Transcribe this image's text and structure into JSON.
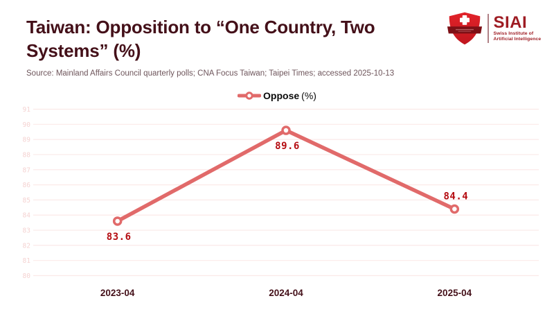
{
  "header": {
    "title": "Taiwan: Opposition to “One Country, Two Systems” (%)",
    "source": "Source: Mainland Affairs Council quarterly polls; CNA Focus Taiwan; Taipei Times; accessed 2025-10-13"
  },
  "logo": {
    "name": "SIAI",
    "subtitle_line1": "Swiss Institute of",
    "subtitle_line2": "Artificial Intelligence"
  },
  "legend": {
    "label": "Oppose",
    "unit": "(%)"
  },
  "chart_data": {
    "type": "line",
    "x": [
      "2023-04",
      "2024-04",
      "2025-04"
    ],
    "series": [
      {
        "name": "Oppose (%)",
        "values": [
          83.6,
          89.6,
          84.4
        ]
      }
    ],
    "data_labels": [
      "83.6",
      "89.6",
      "84.4"
    ],
    "label_positions": [
      "below",
      "below",
      "above"
    ],
    "title": "Taiwan: Opposition to “One Country, Two Systems” (%)",
    "xlabel": "",
    "ylabel": "",
    "ylim": [
      80,
      91
    ],
    "yticks": [
      91,
      90,
      89,
      88,
      87,
      86,
      85,
      84,
      83,
      82,
      81,
      80
    ],
    "grid": true,
    "legend_position": "top-center",
    "colors": {
      "line": "#e16a6a",
      "marker_fill": "#ffffff",
      "data_label": "#b50d12",
      "grid": "#fbe9e8",
      "ytick": "#f5d3d2",
      "xtick": "#441019",
      "title": "#441019",
      "source": "#6e555b",
      "brand_red": "#9e1c23"
    }
  }
}
